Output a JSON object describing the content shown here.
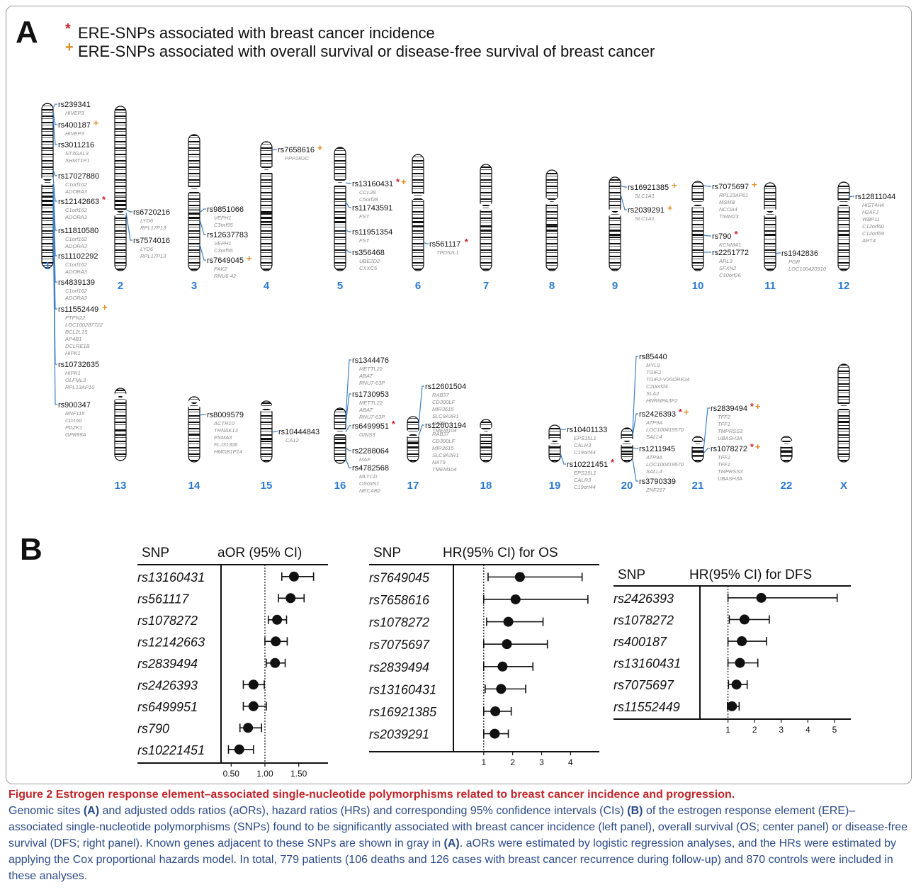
{
  "panel_a": {
    "letter": "A",
    "legend": [
      {
        "symbol": "*",
        "color": "#d0202a",
        "text": "ERE-SNPs associated with breast cancer incidence"
      },
      {
        "symbol": "+",
        "color": "#e08a1e",
        "text": "ERE-SNPs associated with overall survival or disease-free survival of breast cancer"
      }
    ],
    "chromosomes": [
      {
        "label": "1",
        "snps": [
          {
            "rs": "rs239341",
            "marks": "",
            "genes": [
              "HIVEP3"
            ]
          },
          {
            "rs": "rs400187",
            "marks": "+",
            "genes": [
              "HIVEP3"
            ]
          },
          {
            "rs": "rs3011216",
            "marks": "",
            "genes": [
              "ST3GAL3",
              "SHMT1P1"
            ]
          },
          {
            "rs": "rs17027880",
            "marks": "",
            "genes": [
              "C1orf162",
              "ADORA3"
            ]
          },
          {
            "rs": "rs12142663",
            "marks": "*",
            "genes": [
              "C1orf162",
              "ADORA3"
            ]
          },
          {
            "rs": "rs11810580",
            "marks": "",
            "genes": [
              "C1orf162",
              "ADORA3"
            ]
          },
          {
            "rs": "rs11102292",
            "marks": "",
            "genes": [
              "C1orf162",
              "ADORA3"
            ]
          },
          {
            "rs": "rs4839139",
            "marks": "",
            "genes": [
              "C1orf162",
              "ADORA3"
            ]
          },
          {
            "rs": "rs11552449",
            "marks": "+",
            "genes": [
              "PTPN22",
              "LOC100287722",
              "BCL2L15",
              "AP4B1",
              "DCLRE1B",
              "HIPK1"
            ]
          },
          {
            "rs": "rs10732635",
            "marks": "",
            "genes": [
              "HIPK1",
              "OLFML3",
              "RPL13AP10"
            ]
          },
          {
            "rs": "rs900347",
            "marks": "",
            "genes": [
              "RNF115",
              "CD160",
              "PDZK1",
              "GPR89A"
            ]
          }
        ]
      },
      {
        "label": "2",
        "snps": [
          {
            "rs": "rs6720216",
            "marks": "",
            "genes": [
              "LYD6",
              "RPL17P13"
            ]
          },
          {
            "rs": "rs7574016",
            "marks": "",
            "genes": [
              "LYD6",
              "RPL17P13"
            ]
          }
        ]
      },
      {
        "label": "3",
        "snps": [
          {
            "rs": "rs9851066",
            "marks": "",
            "genes": [
              "VEPH1",
              "C3orf55"
            ]
          },
          {
            "rs": "rs12637783",
            "marks": "",
            "genes": [
              "VEPH1",
              "C3orf55"
            ]
          },
          {
            "rs": "rs7649045",
            "marks": "+",
            "genes": [
              "PAK2",
              "RNU6-42"
            ]
          }
        ]
      },
      {
        "label": "4",
        "snps": [
          {
            "rs": "rs7658616",
            "marks": "+",
            "genes": [
              "PPP2R2C"
            ]
          }
        ]
      },
      {
        "label": "5",
        "snps": [
          {
            "rs": "rs13160431",
            "marks": "*+",
            "genes": [
              "CCL28",
              "C5orf28"
            ]
          },
          {
            "rs": "rs11743591",
            "marks": "",
            "genes": [
              "FST"
            ]
          },
          {
            "rs": "rs11951354",
            "marks": "",
            "genes": [
              "FST"
            ]
          },
          {
            "rs": "rs356468",
            "marks": "",
            "genes": [
              "UBE2D2",
              "CXXC5"
            ]
          }
        ]
      },
      {
        "label": "6",
        "snps": [
          {
            "rs": "rs561117",
            "marks": "*",
            "genes": [
              "TPD52L1"
            ]
          }
        ]
      },
      {
        "label": "7",
        "snps": []
      },
      {
        "label": "8",
        "snps": []
      },
      {
        "label": "9",
        "snps": [
          {
            "rs": "rs16921385",
            "marks": "+",
            "genes": [
              "SLC1A1"
            ]
          },
          {
            "rs": "rs2039291",
            "marks": "+",
            "genes": [
              "SLC1A1"
            ]
          }
        ]
      },
      {
        "label": "10",
        "snps": [
          {
            "rs": "rs7075697",
            "marks": "+",
            "genes": [
              "RPL23AP61",
              "MSMB",
              "NCOA4",
              "TIMM23"
            ]
          },
          {
            "rs": "rs790",
            "marks": "*",
            "genes": [
              "KCNMA1"
            ]
          },
          {
            "rs": "rs2251772",
            "marks": "",
            "genes": [
              "ARL3",
              "SFXN2",
              "C10orf26"
            ]
          }
        ]
      },
      {
        "label": "11",
        "snps": [
          {
            "rs": "rs1942836",
            "marks": "",
            "genes": [
              "PGR",
              "LOC100420910"
            ]
          }
        ]
      },
      {
        "label": "12",
        "snps": [
          {
            "rs": "rs12811044",
            "marks": "",
            "genes": [
              "HIST4H4",
              "H2AFJ",
              "WBP11",
              "C12orf60",
              "C12orf69",
              "ART4"
            ]
          }
        ]
      },
      {
        "label": "13",
        "snps": []
      },
      {
        "label": "14",
        "snps": [
          {
            "rs": "rs8009579",
            "marks": "",
            "genes": [
              "ACTR10",
              "TRNAK13",
              "PSMA3",
              "FLJ31306",
              "HMGB1P14"
            ]
          }
        ]
      },
      {
        "label": "15",
        "snps": [
          {
            "rs": "rs10444843",
            "marks": "",
            "genes": [
              "CA12"
            ]
          }
        ]
      },
      {
        "label": "16",
        "snps": [
          {
            "rs": "rs1344476",
            "marks": "",
            "genes": [
              "METTL22",
              "ABAT",
              "RNU7-63P"
            ]
          },
          {
            "rs": "rs1730953",
            "marks": "",
            "genes": [
              "METTL22",
              "ABAT",
              "RNU7-63P"
            ]
          },
          {
            "rs": "rs6499951",
            "marks": "*",
            "genes": [
              "GINS3"
            ]
          },
          {
            "rs": "rs2288064",
            "marks": "",
            "genes": [
              "MAF"
            ]
          },
          {
            "rs": "rs4782568",
            "marks": "",
            "genes": [
              "MLYCD",
              "OSGIN1",
              "NECAB2"
            ]
          }
        ]
      },
      {
        "label": "17",
        "snps": [
          {
            "rs": "rs12601504",
            "marks": "",
            "genes": [
              "RAB37",
              "CD300LF",
              "MIR3615",
              "SLC9A3R1",
              "NAT9",
              "TMEM104"
            ]
          },
          {
            "rs": "rs12603194",
            "marks": "",
            "genes": [
              "RAB37",
              "CD300LF",
              "MIR3615",
              "SLC9A3R1",
              "NAT9",
              "TMEM104"
            ]
          }
        ]
      },
      {
        "label": "18",
        "snps": []
      },
      {
        "label": "19",
        "snps": [
          {
            "rs": "rs10401133",
            "marks": "",
            "genes": [
              "EPS15L1",
              "CALR3",
              "C19orf44"
            ]
          },
          {
            "rs": "rs10221451",
            "marks": "*",
            "genes": [
              "EPS15L1",
              "CALR3",
              "C19orf44"
            ]
          }
        ]
      },
      {
        "label": "20",
        "snps": [
          {
            "rs": "rs85440",
            "marks": "",
            "genes": [
              "MYL9",
              "TGIF2",
              "TGIF2-V20ORF24",
              "C20orf24",
              "SLA2",
              "HNRNPA3P2"
            ]
          },
          {
            "rs": "rs2426393",
            "marks": "*+",
            "genes": [
              "ATP9A",
              "LOC100419570",
              "SALL4"
            ]
          },
          {
            "rs": "rs1211945",
            "marks": "",
            "genes": [
              "ATP9A",
              "LOC100419570",
              "SALL4"
            ]
          },
          {
            "rs": "rs3790339",
            "marks": "",
            "genes": [
              "ZNF217"
            ]
          }
        ]
      },
      {
        "label": "21",
        "snps": [
          {
            "rs": "rs2839494",
            "marks": "*+",
            "genes": [
              "TFF2",
              "TFF1",
              "TMPRSS3",
              "UBASH3A"
            ]
          },
          {
            "rs": "rs1078272",
            "marks": "*+",
            "genes": [
              "TFF2",
              "TFF1",
              "TMPRSS3",
              "UBASH3A"
            ]
          }
        ]
      },
      {
        "label": "22",
        "snps": []
      },
      {
        "label": "X",
        "snps": []
      }
    ]
  },
  "panel_b": {
    "letter": "B"
  },
  "chart_data": [
    {
      "type": "forest",
      "col_label": "SNP",
      "title": "aOR (95% CI)",
      "reference": 1.0,
      "xlim": [
        0.35,
        1.85
      ],
      "ticks": [
        0.5,
        1.0,
        1.5
      ],
      "tick_labels": [
        "0.50",
        "1.00",
        "1.50"
      ],
      "rows": [
        {
          "snp": "rs13160431",
          "est": 1.43,
          "lo": 1.25,
          "hi": 1.72
        },
        {
          "snp": "rs561117",
          "est": 1.38,
          "lo": 1.2,
          "hi": 1.58
        },
        {
          "snp": "rs1078272",
          "est": 1.18,
          "lo": 1.05,
          "hi": 1.32
        },
        {
          "snp": "rs12142663",
          "est": 1.16,
          "lo": 1.0,
          "hi": 1.33
        },
        {
          "snp": "rs2839494",
          "est": 1.15,
          "lo": 1.02,
          "hi": 1.3
        },
        {
          "snp": "rs2426393",
          "est": 0.83,
          "lo": 0.68,
          "hi": 0.99
        },
        {
          "snp": "rs6499951",
          "est": 0.83,
          "lo": 0.68,
          "hi": 1.02
        },
        {
          "snp": "rs790",
          "est": 0.75,
          "lo": 0.63,
          "hi": 0.95
        },
        {
          "snp": "rs10221451",
          "est": 0.62,
          "lo": 0.46,
          "hi": 0.83
        }
      ]
    },
    {
      "type": "forest",
      "col_label": "SNP",
      "title": "HR(95% CI) for OS",
      "reference": 1.0,
      "xlim": [
        0,
        4.8
      ],
      "ticks": [
        1,
        2,
        3,
        4
      ],
      "tick_labels": [
        "1",
        "2",
        "3",
        "4"
      ],
      "rows": [
        {
          "snp": "rs7649045",
          "est": 2.25,
          "lo": 1.15,
          "hi": 4.4
        },
        {
          "snp": "rs7658616",
          "est": 2.1,
          "lo": 1.0,
          "hi": 4.6
        },
        {
          "snp": "rs1078272",
          "est": 1.85,
          "lo": 1.1,
          "hi": 3.05
        },
        {
          "snp": "rs7075697",
          "est": 1.8,
          "lo": 1.0,
          "hi": 3.2
        },
        {
          "snp": "rs2839494",
          "est": 1.65,
          "lo": 1.0,
          "hi": 2.7
        },
        {
          "snp": "rs13160431",
          "est": 1.6,
          "lo": 1.05,
          "hi": 2.45
        },
        {
          "snp": "rs16921385",
          "est": 1.4,
          "lo": 1.0,
          "hi": 1.95
        },
        {
          "snp": "rs2039291",
          "est": 1.38,
          "lo": 1.0,
          "hi": 1.85
        }
      ]
    },
    {
      "type": "forest",
      "col_label": "SNP",
      "title": "HR(95% CI) for DFS",
      "reference": 1.0,
      "xlim": [
        0,
        5.4
      ],
      "ticks": [
        1,
        2,
        3,
        4,
        5
      ],
      "tick_labels": [
        "1",
        "2",
        "3",
        "4",
        "5"
      ],
      "rows": [
        {
          "snp": "rs2426393",
          "est": 2.25,
          "lo": 1.0,
          "hi": 5.1
        },
        {
          "snp": "rs1078272",
          "est": 1.62,
          "lo": 1.05,
          "hi": 2.55
        },
        {
          "snp": "rs400187",
          "est": 1.52,
          "lo": 1.0,
          "hi": 2.45
        },
        {
          "snp": "rs13160431",
          "est": 1.45,
          "lo": 1.0,
          "hi": 2.12
        },
        {
          "snp": "rs7075697",
          "est": 1.32,
          "lo": 1.02,
          "hi": 1.72
        },
        {
          "snp": "rs11552449",
          "est": 1.15,
          "lo": 0.98,
          "hi": 1.42
        }
      ]
    }
  ],
  "caption": {
    "figure_label": "Figure 2",
    "title": "Estrogen response element–associated single-nucleotide polymorphisms related to breast cancer incidence and progression.",
    "seg1": "Genomic sites ",
    "ref_a": "(A)",
    "seg2": " and adjusted odds ratios (aORs), hazard ratios (HRs) and corresponding 95% confidence intervals (CIs) ",
    "ref_b": "(B)",
    "seg3": " of the estrogen response element (ERE)–associated single-nucleotide polymorphisms (SNPs) found to be significantly associated with breast cancer incidence (left panel), overall survival (OS; center panel) or disease-free survival (DFS; right panel). Known genes adjacent to these SNPs are shown in gray in ",
    "ref_a2": "(A)",
    "seg4": ". aORs were estimated by logistic regression analyses, and the HRs were estimated by applying the Cox proportional hazards model. In total, 779 patients (106 deaths and 126 cases with breast cancer recurrence during follow-up) and 870 controls were included in these analyses."
  }
}
